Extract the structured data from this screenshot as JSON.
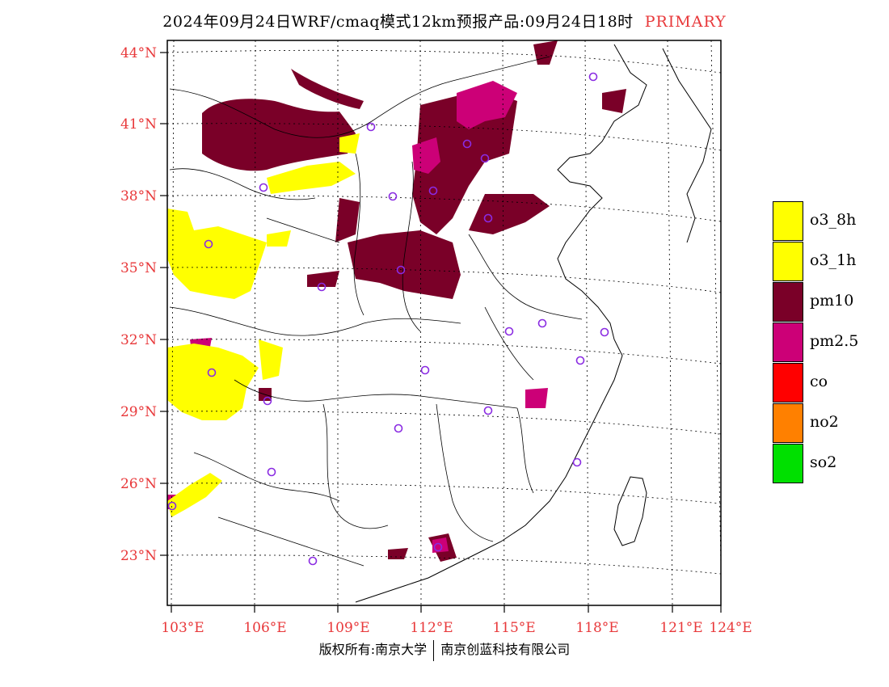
{
  "header": {
    "title": "2024年09月24日WRF/cmaq模式12km预报产品:09月24日18时",
    "tag": "PRIMARY"
  },
  "axes": {
    "lat_labels": [
      "44°N",
      "41°N",
      "38°N",
      "35°N",
      "32°N",
      "29°N",
      "26°N",
      "23°N"
    ],
    "lon_labels": [
      "103°E",
      "106°E",
      "109°E",
      "112°E",
      "115°E",
      "118°E",
      "121°E",
      "124°E"
    ],
    "label_color": "#e8383a"
  },
  "legend": {
    "items": [
      {
        "label": "o3_8h",
        "color": "#ffff00"
      },
      {
        "label": "o3_1h",
        "color": "#ffff00"
      },
      {
        "label": "pm10",
        "color": "#7a0028"
      },
      {
        "label": "pm2.5",
        "color": "#cc0077"
      },
      {
        "label": "co",
        "color": "#ff0000"
      },
      {
        "label": "no2",
        "color": "#ff8000"
      },
      {
        "label": "so2",
        "color": "#00e000"
      }
    ]
  },
  "footer": {
    "left": "版权所有:南京大学",
    "right": "南京创蓝科技有限公司"
  },
  "icons": {
    "station_marker": "circle-outline-icon",
    "station_color": "#8a2be2"
  }
}
